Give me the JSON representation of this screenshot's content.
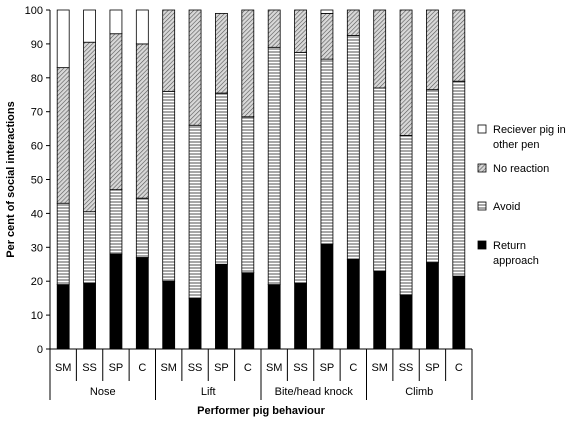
{
  "chart_data": {
    "type": "bar",
    "stacked": true,
    "ylabel": "Per cent of social interactions",
    "xlabel": "Performer pig behaviour",
    "ylim": [
      0,
      100
    ],
    "yticks": [
      0,
      10,
      20,
      30,
      40,
      50,
      60,
      70,
      80,
      90,
      100
    ],
    "groups": [
      {
        "label": "Nose",
        "categories": [
          "SM",
          "SS",
          "SP",
          "C"
        ]
      },
      {
        "label": "Lift",
        "categories": [
          "SM",
          "SS",
          "SP",
          "C"
        ]
      },
      {
        "label": "Bite/head knock",
        "categories": [
          "SM",
          "SS",
          "SP",
          "C"
        ]
      },
      {
        "label": "Climb",
        "categories": [
          "SM",
          "SS",
          "SP",
          "C"
        ]
      }
    ],
    "series": [
      {
        "name": "Return approach",
        "pattern": "solid",
        "values": [
          19,
          19.5,
          28,
          27,
          20,
          15,
          25,
          22.5,
          19,
          19.5,
          31,
          26.5,
          23,
          16,
          25.5,
          21.5
        ]
      },
      {
        "name": "Avoid",
        "pattern": "horizontal",
        "values": [
          24,
          21,
          19,
          17.5,
          56,
          51,
          50.5,
          46,
          70,
          68,
          54.5,
          66,
          54,
          47,
          51,
          57.5
        ]
      },
      {
        "name": "No reaction",
        "pattern": "diagonal",
        "values": [
          40,
          50,
          46,
          45.5,
          24,
          34,
          23.5,
          31.5,
          11,
          12.5,
          13.5,
          7.5,
          23,
          37,
          23.5,
          21
        ]
      },
      {
        "name": "Reciever pig in other pen",
        "pattern": "white",
        "values": [
          17,
          9.5,
          7,
          10,
          0,
          0,
          0,
          0,
          0,
          0,
          1,
          0,
          0,
          0,
          0,
          0
        ]
      }
    ],
    "legend": {
      "position": "right",
      "entries": [
        {
          "name": "Reciever pig in other pen",
          "lines": [
            "Reciever pig in",
            "other pen"
          ],
          "pattern": "white"
        },
        {
          "name": "No reaction",
          "lines": [
            "No reaction"
          ],
          "pattern": "diagonal"
        },
        {
          "name": "Avoid",
          "lines": [
            "Avoid"
          ],
          "pattern": "horizontal"
        },
        {
          "name": "Return approach",
          "lines": [
            "Return",
            "approach"
          ],
          "pattern": "solid"
        }
      ]
    },
    "grid": false
  }
}
